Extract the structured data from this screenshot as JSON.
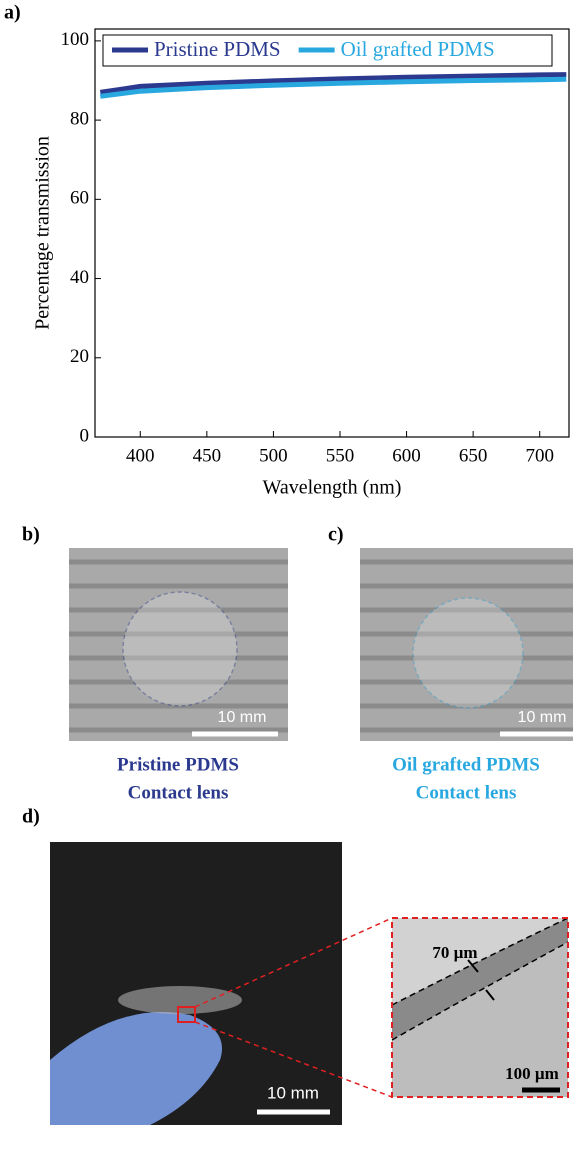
{
  "chart_data": {
    "type": "line",
    "x_label": "Wavelength (nm)",
    "y_label": "Percentage transmission",
    "x": [
      370,
      400,
      450,
      500,
      550,
      600,
      650,
      700,
      720
    ],
    "series": [
      {
        "name": "Pristine PDMS",
        "color": "#2b3a8f",
        "values": [
          87.0,
          88.5,
          89.3,
          89.9,
          90.4,
          90.8,
          91.1,
          91.4,
          91.5
        ]
      },
      {
        "name": "Oil grafted PDMS",
        "color": "#29a8e0",
        "values": [
          86.0,
          87.3,
          88.2,
          88.8,
          89.3,
          89.7,
          90.0,
          90.2,
          90.3
        ]
      }
    ],
    "xlim": [
      366,
      722
    ],
    "ylim": [
      0,
      103
    ],
    "xticks": [
      400,
      450,
      500,
      550,
      600,
      650,
      700
    ],
    "yticks": [
      0,
      20,
      40,
      60,
      80,
      100
    ],
    "legend": "top"
  },
  "panels": {
    "a": "a)",
    "b": "b)",
    "c": "c)",
    "d": "d)",
    "b_caption": [
      "Pristine PDMS",
      "Contact lens"
    ],
    "c_caption": [
      "Oil grafted PDMS",
      "Contact lens"
    ],
    "b_scale": "10 mm",
    "c_scale": "10 mm",
    "d_scale": "10 mm",
    "inset_thickness": "70 µm",
    "inset_scale": "100 µm"
  }
}
